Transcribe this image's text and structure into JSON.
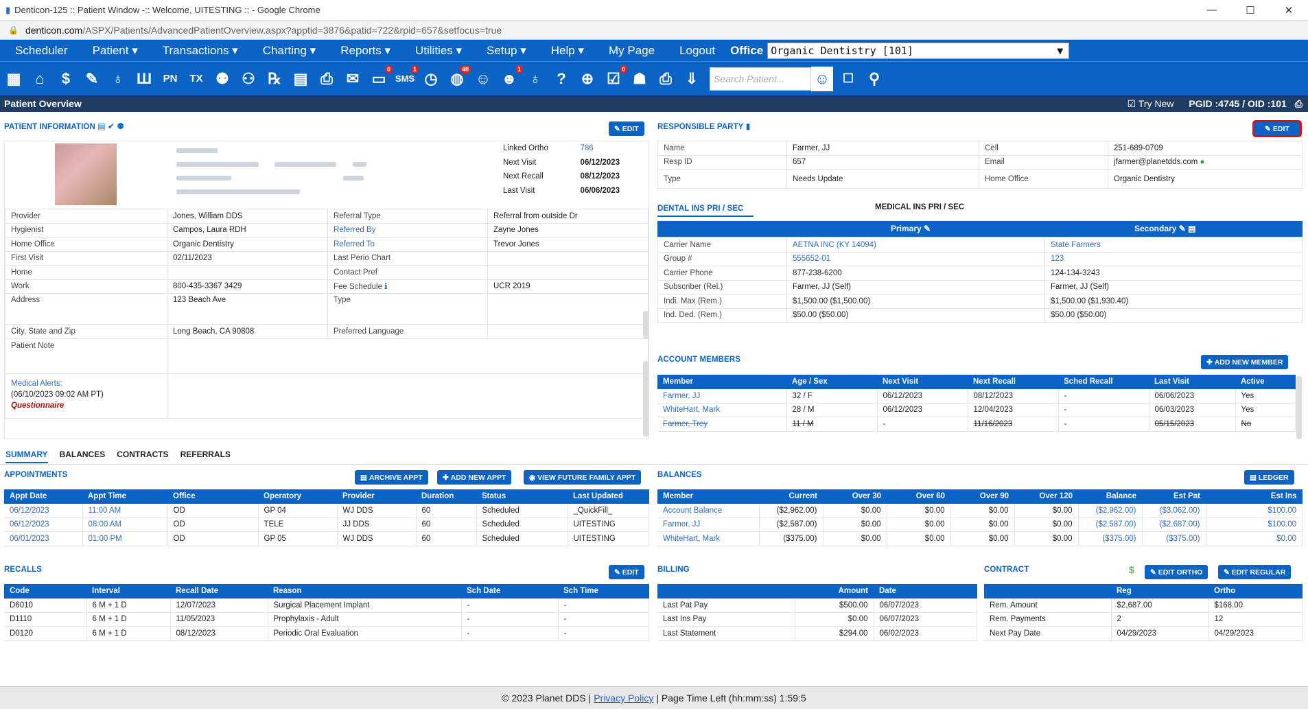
{
  "browser": {
    "title": "Denticon-125 :: Patient Window -:: Welcome, UITESTING :: - Google Chrome",
    "url_domain": "denticon.com",
    "url_path": "/ASPX/Patients/AdvancedPatientOverview.aspx?apptid=3876&patid=722&rpid=657&setfocus=true"
  },
  "menu": {
    "items": [
      "Scheduler",
      "Patient ▾",
      "Transactions ▾",
      "Charting ▾",
      "Reports ▾",
      "Utilities ▾",
      "Setup ▾",
      "Help ▾",
      "My Page",
      "Logout"
    ],
    "office_label": "Office",
    "office_value": "Organic Dentistry [101]"
  },
  "toolbar": {
    "search_placeholder": "Search Patient...",
    "icons": [
      "calendar-icon",
      "home-icon",
      "dollar-icon",
      "pen-icon",
      "tooth-icon",
      "teeth-icon",
      "pn-icon",
      "tx-icon",
      "add-patient-icon",
      "family-icon",
      "rx-icon",
      "note-icon",
      "print-icon",
      "mail-icon",
      "chat-icon",
      "sms-icon",
      "clock-icon",
      "globe-icon",
      "support-icon",
      "headset-icon",
      "tooth2-icon",
      "question-icon",
      "web-icon",
      "checklist-icon",
      "people-icon",
      "printer-icon",
      "down-icon"
    ],
    "badges": {
      "chat": "0",
      "sms": "1",
      "globe": "48",
      "headset": "1",
      "checklist": "0"
    }
  },
  "header": {
    "title": "Patient Overview",
    "try_new": "Try New",
    "pgid": "PGID :4745  /  OID :101"
  },
  "patient_info": {
    "title": "PATIENT INFORMATION",
    "edit": "EDIT",
    "summary": [
      [
        "Linked Ortho",
        "786"
      ],
      [
        "Next Visit",
        "06/12/2023"
      ],
      [
        "Next Recall",
        "08/12/2023"
      ],
      [
        "Last Visit",
        "06/06/2023"
      ]
    ],
    "rows": [
      [
        "Provider",
        "Jones, William DDS",
        "Referral Type",
        "Referral from outside Dr"
      ],
      [
        "Hygienist",
        "Campos, Laura RDH",
        "Referred By",
        "Zayne Jones"
      ],
      [
        "Home Office",
        "Organic Dentistry",
        "Referred To",
        "Trevor Jones"
      ],
      [
        "First Visit",
        "02/11/2023",
        "Last Perio Chart",
        ""
      ],
      [
        "Home",
        "",
        "Contact Pref",
        ""
      ],
      [
        "Work",
        "800-435-3367 3429",
        "Fee Schedule",
        "UCR 2019"
      ]
    ],
    "address_label": "Address",
    "address": "123 Beach Ave",
    "type_label": "Type",
    "city_label": "City, State and Zip",
    "city": "Long Beach, CA 90808",
    "lang_label": "Preferred Language",
    "note_label": "Patient Note",
    "alerts_label": "Medical Alerts:",
    "alerts_date": "(06/10/2023 09:02 AM PT)",
    "alerts_q": "Questionnaire"
  },
  "responsible": {
    "title": "RESPONSIBLE PARTY",
    "edit": "EDIT",
    "rows": [
      [
        "Name",
        "Farmer, JJ",
        "Cell",
        "251-689-0709"
      ],
      [
        "Resp ID",
        "657",
        "Email",
        "jfarmer@planetdds.com"
      ],
      [
        "Type",
        "Needs Update",
        "Home Office",
        "Organic Dentistry"
      ]
    ]
  },
  "insurance": {
    "tab1": "DENTAL INS PRI / SEC",
    "tab2": "MEDICAL INS PRI / SEC",
    "primary": "Primary",
    "secondary": "Secondary",
    "rows": [
      [
        "Carrier Name",
        "AETNA INC (KY 14094)",
        "State Farmers"
      ],
      [
        "Group #",
        "555652-01",
        "123"
      ],
      [
        "Carrier Phone",
        "877-238-6200",
        "124-134-3243"
      ],
      [
        "Subscriber (Rel.)",
        "Farmer, JJ (Self)",
        "Farmer, JJ (Self)"
      ],
      [
        "Indi. Max (Rem.)",
        "$1,500.00 ($1,500.00)",
        "$1,500.00 ($1,930.40)"
      ],
      [
        "Ind. Ded. (Rem.)",
        "$50.00 ($50.00)",
        "$50.00 ($50.00)"
      ]
    ]
  },
  "members": {
    "title": "ACCOUNT MEMBERS",
    "add": "ADD NEW MEMBER",
    "headers": [
      "Member",
      "Age / Sex",
      "Next Visit",
      "Next Recall",
      "Sched Recall",
      "Last Visit",
      "Active"
    ],
    "rows": [
      [
        "Farmer, JJ",
        "32 / F",
        "06/12/2023",
        "08/12/2023",
        "-",
        "06/06/2023",
        "Yes"
      ],
      [
        "WhiteHart, Mark",
        "28 / M",
        "06/12/2023",
        "12/04/2023",
        "-",
        "06/03/2023",
        "Yes"
      ],
      [
        "Farmer, Trey",
        "11 / M",
        "-",
        "11/16/2023",
        "-",
        "05/15/2023",
        "No"
      ]
    ]
  },
  "tabs": [
    "SUMMARY",
    "BALANCES",
    "CONTRACTS",
    "REFERRALS"
  ],
  "appointments": {
    "title": "APPOINTMENTS",
    "archive": "ARCHIVE APPT",
    "add": "ADD NEW APPT",
    "future": "VIEW FUTURE FAMILY APPT",
    "headers": [
      "Appt Date",
      "Appt Time",
      "Office",
      "Operatory",
      "Provider",
      "Duration",
      "Status",
      "Last Updated"
    ],
    "rows": [
      [
        "06/12/2023",
        "11:00 AM",
        "OD",
        "GP 04",
        "WJ DDS",
        "60",
        "Scheduled",
        "_QuickFill_"
      ],
      [
        "06/12/2023",
        "08:00 AM",
        "OD",
        "TELE",
        "JJ DDS",
        "60",
        "Scheduled",
        "UITESTING"
      ],
      [
        "06/01/2023",
        "01:00 PM",
        "OD",
        "GP 05",
        "WJ DDS",
        "60",
        "Scheduled",
        "UITESTING"
      ]
    ]
  },
  "balances": {
    "title": "BALANCES",
    "ledger": "LEDGER",
    "headers": [
      "Member",
      "Current",
      "Over 30",
      "Over 60",
      "Over 90",
      "Over 120",
      "Balance",
      "Est Pat",
      "Est Ins"
    ],
    "rows": [
      [
        "Account Balance",
        "($2,962.00)",
        "$0.00",
        "$0.00",
        "$0.00",
        "$0.00",
        "($2,962.00)",
        "($3,062.00)",
        "$100.00"
      ],
      [
        "Farmer, JJ",
        "($2,587.00)",
        "$0.00",
        "$0.00",
        "$0.00",
        "$0.00",
        "($2,587.00)",
        "($2,687.00)",
        "$100.00"
      ],
      [
        "WhiteHart, Mark",
        "($375.00)",
        "$0.00",
        "$0.00",
        "$0.00",
        "$0.00",
        "($375.00)",
        "($375.00)",
        "$0.00"
      ]
    ]
  },
  "recalls": {
    "title": "RECALLS",
    "edit": "EDIT",
    "headers": [
      "Code",
      "Interval",
      "Recall Date",
      "Reason",
      "Sch Date",
      "Sch Time"
    ],
    "rows": [
      [
        "D6010",
        "6 M + 1 D",
        "12/07/2023",
        "Surgical Placement Implant",
        "-",
        "-"
      ],
      [
        "D1110",
        "6 M + 1 D",
        "11/05/2023",
        "Prophylaxis - Adult",
        "-",
        "-"
      ],
      [
        "D0120",
        "6 M + 1 D",
        "08/12/2023",
        "Periodic Oral Evaluation",
        "-",
        "-"
      ]
    ]
  },
  "billing": {
    "title": "BILLING",
    "headers": [
      "",
      "Amount",
      "Date"
    ],
    "rows": [
      [
        "Last Pat Pay",
        "$500.00",
        "06/07/2023"
      ],
      [
        "Last Ins Pay",
        "$0.00",
        "06/07/2023"
      ],
      [
        "Last Statement",
        "$294.00",
        "06/02/2023"
      ]
    ]
  },
  "contract": {
    "title": "CONTRACT",
    "edit_ortho": "EDIT ORTHO",
    "edit_regular": "EDIT REGULAR",
    "headers": [
      "",
      "Reg",
      "Ortho"
    ],
    "rows": [
      [
        "Rem. Amount",
        "$2,687.00",
        "$168.00"
      ],
      [
        "Rem. Payments",
        "2",
        "12"
      ],
      [
        "Next Pay Date",
        "04/29/2023",
        "04/29/2023"
      ]
    ]
  },
  "footer": {
    "copy": "© 2023 Planet DDS |",
    "privacy": "Privacy Policy",
    "rest": "|  Page Time Left (hh:mm:ss) 1:59:5"
  }
}
